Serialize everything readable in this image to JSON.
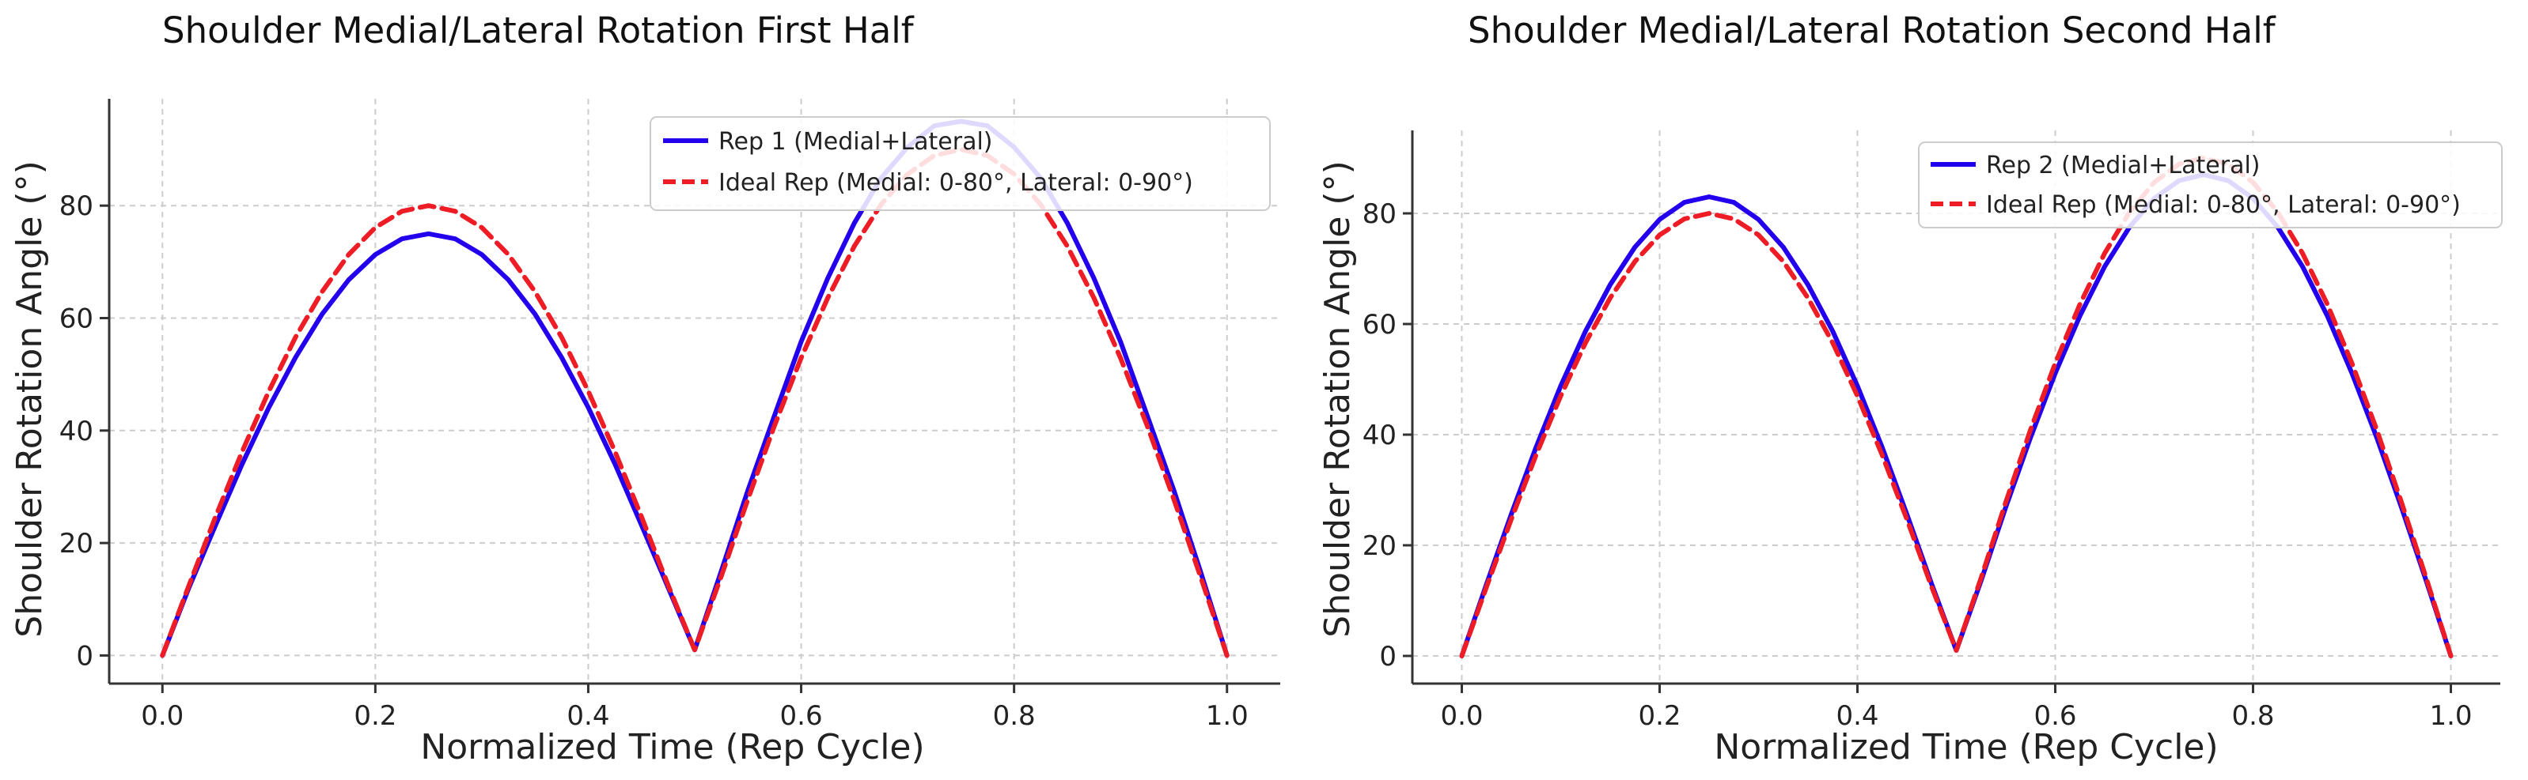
{
  "chart_data": [
    {
      "type": "line",
      "title": "Shoulder Medial/Lateral Rotation First Half",
      "xlabel": "Normalized Time (Rep Cycle)",
      "ylabel": "Shoulder Rotation Angle (°)",
      "xlim": [
        -0.05,
        1.05
      ],
      "ylim": [
        -5,
        99
      ],
      "xticks": [
        "0.0",
        "0.2",
        "0.4",
        "0.6",
        "0.8",
        "1.0"
      ],
      "yticks": [
        "0",
        "20",
        "40",
        "60",
        "80"
      ],
      "grid": true,
      "legend_position": "top-right",
      "x": [
        0,
        0.025,
        0.05,
        0.075,
        0.1,
        0.125,
        0.15,
        0.175,
        0.2,
        0.225,
        0.25,
        0.275,
        0.3,
        0.325,
        0.35,
        0.375,
        0.4,
        0.425,
        0.45,
        0.475,
        0.5,
        0.525,
        0.55,
        0.575,
        0.6,
        0.625,
        0.65,
        0.675,
        0.7,
        0.725,
        0.75,
        0.775,
        0.8,
        0.825,
        0.85,
        0.875,
        0.9,
        0.925,
        0.95,
        0.975,
        1.0
      ],
      "series": [
        {
          "name": "Rep 1 (Medial+Lateral)",
          "color": "#2200ee",
          "style": "solid",
          "values": [
            0,
            12.1,
            23.2,
            34.1,
            44.1,
            53.0,
            60.7,
            66.8,
            71.3,
            74.1,
            75.0,
            74.1,
            71.3,
            66.8,
            60.7,
            53.0,
            44.1,
            34.1,
            23.2,
            12.1,
            1,
            15.0,
            29.4,
            42.7,
            55.8,
            67.1,
            76.9,
            84.9,
            90.4,
            94.2,
            95.0,
            94.2,
            90.4,
            84.9,
            76.9,
            67.1,
            55.8,
            42.7,
            29.4,
            15.0,
            0
          ]
        },
        {
          "name": "Ideal Rep (Medial: 0-80°, Lateral: 0-90°)",
          "color": "#ee1c25",
          "style": "dashed",
          "values": [
            0,
            12.5,
            24.7,
            36.3,
            47.0,
            56.6,
            64.7,
            71.3,
            76.1,
            79.0,
            80.0,
            79.0,
            76.1,
            71.3,
            64.7,
            56.6,
            47.0,
            36.3,
            24.7,
            12.5,
            1,
            14.1,
            27.8,
            40.9,
            52.9,
            63.6,
            72.8,
            80.2,
            85.6,
            88.9,
            90.0,
            88.9,
            85.6,
            80.2,
            72.8,
            63.6,
            52.9,
            40.9,
            27.8,
            14.1,
            0
          ]
        }
      ]
    },
    {
      "type": "line",
      "title": "Shoulder Medial/Lateral Rotation Second Half",
      "xlabel": "Normalized Time (Rep Cycle)",
      "ylabel": "Shoulder Rotation Angle (°)",
      "xlim": [
        -0.05,
        1.05
      ],
      "ylim": [
        -5,
        95
      ],
      "xticks": [
        "0.0",
        "0.2",
        "0.4",
        "0.6",
        "0.8",
        "1.0"
      ],
      "yticks": [
        "0",
        "20",
        "40",
        "60",
        "80"
      ],
      "grid": true,
      "legend_position": "top-right",
      "x": [
        0,
        0.025,
        0.05,
        0.075,
        0.1,
        0.125,
        0.15,
        0.175,
        0.2,
        0.225,
        0.25,
        0.275,
        0.3,
        0.325,
        0.35,
        0.375,
        0.4,
        0.425,
        0.45,
        0.475,
        0.5,
        0.525,
        0.55,
        0.575,
        0.6,
        0.625,
        0.65,
        0.675,
        0.7,
        0.725,
        0.75,
        0.775,
        0.8,
        0.825,
        0.85,
        0.875,
        0.9,
        0.925,
        0.95,
        0.975,
        1.0
      ],
      "series": [
        {
          "name": "Rep 2 (Medial+Lateral)",
          "color": "#2200ee",
          "style": "solid",
          "values": [
            0,
            13.0,
            25.6,
            37.7,
            48.8,
            58.7,
            67.1,
            73.9,
            78.9,
            82.0,
            83.0,
            82.0,
            78.9,
            73.9,
            67.1,
            58.7,
            48.8,
            37.7,
            25.6,
            13.0,
            1,
            13.6,
            26.9,
            39.5,
            51.1,
            61.5,
            70.4,
            77.5,
            82.7,
            85.9,
            87.0,
            85.9,
            82.7,
            77.5,
            70.4,
            61.5,
            51.1,
            39.5,
            26.9,
            13.6,
            0
          ]
        },
        {
          "name": "Ideal Rep (Medial: 0-80°, Lateral: 0-90°)",
          "color": "#ee1c25",
          "style": "dashed",
          "values": [
            0,
            12.5,
            24.7,
            36.3,
            47.0,
            56.6,
            64.7,
            71.3,
            76.1,
            79.0,
            80.0,
            79.0,
            76.1,
            71.3,
            64.7,
            56.6,
            47.0,
            36.3,
            24.7,
            12.5,
            1,
            14.1,
            27.8,
            40.9,
            52.9,
            63.6,
            72.8,
            80.2,
            85.6,
            88.9,
            90.0,
            88.9,
            85.6,
            80.2,
            72.8,
            63.6,
            52.9,
            40.9,
            27.8,
            14.1,
            0
          ]
        }
      ]
    }
  ]
}
